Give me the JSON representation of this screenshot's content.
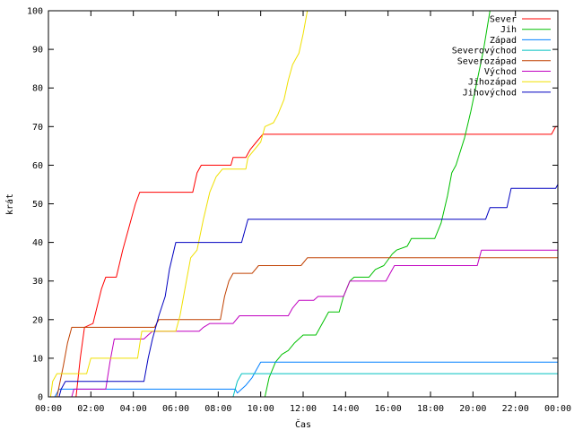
{
  "chart_data": {
    "type": "line",
    "title": "",
    "xlabel": "Čas",
    "ylabel": "krát",
    "xlim": [
      0,
      24
    ],
    "ylim": [
      0,
      100
    ],
    "x_ticks": [
      "00:00",
      "02:00",
      "04:00",
      "06:00",
      "08:00",
      "10:00",
      "12:00",
      "14:00",
      "16:00",
      "18:00",
      "20:00",
      "22:00",
      "00:00"
    ],
    "y_ticks": [
      0,
      10,
      20,
      30,
      40,
      50,
      60,
      70,
      80,
      90,
      100
    ],
    "grid": false,
    "legend_position": "top-right",
    "series": [
      {
        "name": "Sever",
        "color": "#ff0000",
        "points": [
          [
            1.3,
            0
          ],
          [
            1.5,
            10
          ],
          [
            1.7,
            18
          ],
          [
            2.1,
            19
          ],
          [
            2.5,
            28
          ],
          [
            2.7,
            31
          ],
          [
            3.2,
            31
          ],
          [
            3.5,
            38
          ],
          [
            3.8,
            44
          ],
          [
            4.1,
            50
          ],
          [
            4.3,
            53
          ],
          [
            6.8,
            53
          ],
          [
            7.0,
            58
          ],
          [
            7.2,
            60
          ],
          [
            8.6,
            60
          ],
          [
            8.7,
            62
          ],
          [
            9.3,
            62
          ],
          [
            9.5,
            64
          ],
          [
            9.8,
            66
          ],
          [
            10.1,
            68
          ],
          [
            23.7,
            68
          ],
          [
            23.9,
            70
          ],
          [
            24,
            70
          ]
        ]
      },
      {
        "name": "Jih",
        "color": "#00c000",
        "points": [
          [
            10.2,
            0
          ],
          [
            10.4,
            5
          ],
          [
            10.7,
            9
          ],
          [
            11.0,
            11
          ],
          [
            11.3,
            12
          ],
          [
            11.6,
            14
          ],
          [
            12.0,
            16
          ],
          [
            12.6,
            16
          ],
          [
            12.9,
            19
          ],
          [
            13.2,
            22
          ],
          [
            13.7,
            22
          ],
          [
            13.9,
            26
          ],
          [
            14.2,
            30
          ],
          [
            14.4,
            31
          ],
          [
            15.1,
            31
          ],
          [
            15.4,
            33
          ],
          [
            15.8,
            34
          ],
          [
            16.2,
            37
          ],
          [
            16.4,
            38
          ],
          [
            16.9,
            39
          ],
          [
            17.1,
            41
          ],
          [
            18.2,
            41
          ],
          [
            18.5,
            45
          ],
          [
            18.8,
            52
          ],
          [
            19.0,
            58
          ],
          [
            19.2,
            60
          ],
          [
            19.6,
            67
          ],
          [
            19.9,
            74
          ],
          [
            20.2,
            82
          ],
          [
            20.5,
            90
          ],
          [
            20.8,
            100
          ]
        ]
      },
      {
        "name": "Západ",
        "color": "#0080ff",
        "points": [
          [
            0.3,
            0
          ],
          [
            0.4,
            1
          ],
          [
            0.5,
            2
          ],
          [
            8.8,
            2
          ],
          [
            8.9,
            1
          ],
          [
            9.3,
            3
          ],
          [
            9.6,
            5
          ],
          [
            9.8,
            7
          ],
          [
            10.0,
            9
          ],
          [
            24,
            9
          ]
        ]
      },
      {
        "name": "Severovýchod",
        "color": "#00c0c0",
        "points": [
          [
            8.7,
            0
          ],
          [
            8.9,
            4
          ],
          [
            9.1,
            6
          ],
          [
            24,
            6
          ]
        ]
      },
      {
        "name": "Severozápad",
        "color": "#c04000",
        "points": [
          [
            0.4,
            0
          ],
          [
            0.7,
            8
          ],
          [
            0.9,
            14
          ],
          [
            1.1,
            18
          ],
          [
            5.0,
            18
          ],
          [
            5.2,
            20
          ],
          [
            8.1,
            20
          ],
          [
            8.3,
            26
          ],
          [
            8.5,
            30
          ],
          [
            8.7,
            32
          ],
          [
            9.6,
            32
          ],
          [
            9.9,
            34
          ],
          [
            11.9,
            34
          ],
          [
            12.2,
            36
          ],
          [
            24,
            36
          ]
        ]
      },
      {
        "name": "Východ",
        "color": "#c000c0",
        "points": [
          [
            1.1,
            0
          ],
          [
            1.2,
            2
          ],
          [
            2.7,
            2
          ],
          [
            2.9,
            9
          ],
          [
            3.1,
            15
          ],
          [
            4.5,
            15
          ],
          [
            4.7,
            16
          ],
          [
            4.9,
            17
          ],
          [
            7.1,
            17
          ],
          [
            7.3,
            18
          ],
          [
            7.6,
            19
          ],
          [
            8.7,
            19
          ],
          [
            9.0,
            21
          ],
          [
            11.3,
            21
          ],
          [
            11.5,
            23
          ],
          [
            11.8,
            25
          ],
          [
            12.5,
            25
          ],
          [
            12.7,
            26
          ],
          [
            13.9,
            26
          ],
          [
            14.2,
            30
          ],
          [
            15.9,
            30
          ],
          [
            16.1,
            32
          ],
          [
            16.3,
            34
          ],
          [
            20.2,
            34
          ],
          [
            20.4,
            38
          ],
          [
            24,
            38
          ]
        ]
      },
      {
        "name": "Jihozápad",
        "color": "#f0e000",
        "points": [
          [
            0.1,
            0
          ],
          [
            0.2,
            4
          ],
          [
            0.4,
            6
          ],
          [
            1.8,
            6
          ],
          [
            2.0,
            10
          ],
          [
            4.2,
            10
          ],
          [
            4.4,
            17
          ],
          [
            6.0,
            17
          ],
          [
            6.2,
            21
          ],
          [
            6.5,
            30
          ],
          [
            6.7,
            36
          ],
          [
            7.0,
            38
          ],
          [
            7.3,
            46
          ],
          [
            7.6,
            53
          ],
          [
            7.9,
            57
          ],
          [
            8.2,
            59
          ],
          [
            9.3,
            59
          ],
          [
            9.4,
            62
          ],
          [
            9.7,
            64
          ],
          [
            10.0,
            66
          ],
          [
            10.2,
            70
          ],
          [
            10.6,
            71
          ],
          [
            10.8,
            73
          ],
          [
            11.1,
            77
          ],
          [
            11.3,
            82
          ],
          [
            11.5,
            86
          ],
          [
            11.8,
            89
          ],
          [
            12.0,
            94
          ],
          [
            12.2,
            100
          ]
        ]
      },
      {
        "name": "Jihovýchod",
        "color": "#0000c0",
        "points": [
          [
            0.5,
            0
          ],
          [
            0.6,
            2
          ],
          [
            0.8,
            4
          ],
          [
            4.5,
            4
          ],
          [
            4.7,
            10
          ],
          [
            4.9,
            15
          ],
          [
            5.2,
            21
          ],
          [
            5.5,
            26
          ],
          [
            5.7,
            33
          ],
          [
            6.0,
            40
          ],
          [
            9.1,
            40
          ],
          [
            9.4,
            46
          ],
          [
            20.6,
            46
          ],
          [
            20.8,
            49
          ],
          [
            21.6,
            49
          ],
          [
            21.8,
            54
          ],
          [
            23.9,
            54
          ],
          [
            24,
            55
          ]
        ]
      }
    ]
  }
}
